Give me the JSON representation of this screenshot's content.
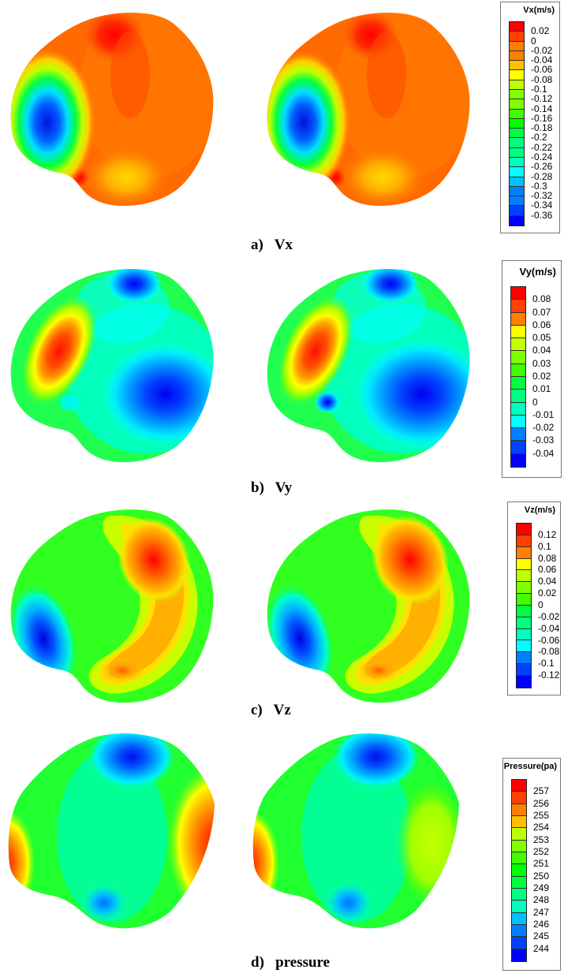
{
  "figure": {
    "panels": [
      {
        "id": "a",
        "caption": "a)   Vx",
        "legend_title": "Vx(m/s)",
        "legend_ticks": [
          "0.02",
          "0",
          "-0.02",
          "-0.04",
          "-0.06",
          "-0.08",
          "-0.1",
          "-0.12",
          "-0.14",
          "-0.16",
          "-0.18",
          "-0.2",
          "-0.22",
          "-0.24",
          "-0.26",
          "-0.28",
          "-0.3",
          "-0.32",
          "-0.34",
          "-0.36"
        ]
      },
      {
        "id": "b",
        "caption": "b)   Vy",
        "legend_title": "Vy(m/s)",
        "legend_ticks": [
          "0.08",
          "0.07",
          "0.06",
          "0.05",
          "0.04",
          "0.03",
          "0.02",
          "0.01",
          "0",
          "-0.01",
          "-0.02",
          "-0.03",
          "-0.04"
        ]
      },
      {
        "id": "c",
        "caption": "c)   Vz",
        "legend_title": "Vz(m/s)",
        "legend_ticks": [
          "0.12",
          "0.1",
          "0.08",
          "0.06",
          "0.04",
          "0.02",
          "0",
          "-0.02",
          "-0.04",
          "-0.06",
          "-0.08",
          "-0.1",
          "-0.12"
        ]
      },
      {
        "id": "d",
        "caption": "d)   pressure",
        "legend_title": "Pressure(pa)",
        "legend_ticks": [
          "257",
          "256",
          "255",
          "254",
          "253",
          "252",
          "251",
          "250",
          "249",
          "248",
          "247",
          "246",
          "245",
          "244"
        ]
      }
    ],
    "colormap": [
      "#ff0000",
      "#ff4000",
      "#ff8000",
      "#ffc000",
      "#ffff00",
      "#c0ff00",
      "#80ff00",
      "#40ff00",
      "#00ff00",
      "#00ff40",
      "#00ff80",
      "#00ffc0",
      "#00ffff",
      "#00c0ff",
      "#0080ff",
      "#0040ff",
      "#0000ff"
    ]
  },
  "chart_data": [
    {
      "type": "heatmap",
      "title": "a) Vx",
      "colorbar_label": "Vx(m/s)",
      "colorbar_ticks": [
        0.02,
        0,
        -0.02,
        -0.04,
        -0.06,
        -0.08,
        -0.1,
        -0.12,
        -0.14,
        -0.16,
        -0.18,
        -0.2,
        -0.22,
        -0.24,
        -0.26,
        -0.28,
        -0.3,
        -0.32,
        -0.34,
        -0.36
      ],
      "range": [
        -0.36,
        0.02
      ],
      "views": 2,
      "features": [
        "Min (~-0.36, blue) at left-center lobe",
        "Max (~0.02, red) at top-center",
        "Local low (~-0.06, yellow) at lower-center",
        "Mostly ~0 (orange) elsewhere"
      ]
    },
    {
      "type": "heatmap",
      "title": "b) Vy",
      "colorbar_label": "Vy(m/s)",
      "colorbar_ticks": [
        0.08,
        0.07,
        0.06,
        0.05,
        0.04,
        0.03,
        0.02,
        0.01,
        0,
        -0.01,
        -0.02,
        -0.03,
        -0.04
      ],
      "range": [
        -0.04,
        0.08
      ],
      "views": 2,
      "features": [
        "Max (~0.08, red) elongated band on left",
        "Min (~-0.04, blue) at lower-right",
        "Secondary low (~-0.03) at top-center",
        "Background ~0.01-0.02 (green)"
      ]
    },
    {
      "type": "heatmap",
      "title": "c) Vz",
      "colorbar_label": "Vz(m/s)",
      "colorbar_ticks": [
        0.12,
        0.1,
        0.08,
        0.06,
        0.04,
        0.02,
        0,
        -0.02,
        -0.04,
        -0.06,
        -0.08,
        -0.1,
        -0.12
      ],
      "range": [
        -0.12,
        0.12
      ],
      "views": 2,
      "features": [
        "Max (~0.12, red) at upper-right",
        "Min (~-0.12, blue) at lower-left",
        "S-shaped orange/yellow band from upper-right to lower-center",
        "Background ~0.02 (green)"
      ]
    },
    {
      "type": "heatmap",
      "title": "d) pressure",
      "colorbar_label": "Pressure(pa)",
      "colorbar_ticks": [
        257,
        256,
        255,
        254,
        253,
        252,
        251,
        250,
        249,
        248,
        247,
        246,
        245,
        244
      ],
      "range": [
        244,
        257
      ],
      "views": 2,
      "features": [
        "Min (~244, blue) at top-center",
        "Max (~257, red) at left edge and right edge (left view)",
        "Local low (~246) at lower-center",
        "Background ~249-251 (green)"
      ]
    }
  ]
}
